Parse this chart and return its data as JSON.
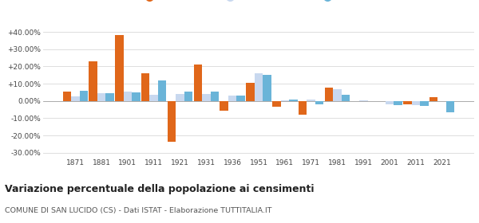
{
  "years": [
    1871,
    1881,
    1901,
    1911,
    1921,
    1931,
    1936,
    1951,
    1961,
    1971,
    1981,
    1991,
    2001,
    2011,
    2021
  ],
  "san_lucido": [
    5.5,
    23.0,
    38.0,
    16.0,
    -23.5,
    21.0,
    -5.5,
    10.5,
    -3.5,
    -8.0,
    7.5,
    0.0,
    0.0,
    -2.0,
    2.0
  ],
  "provincia_cs": [
    2.5,
    4.5,
    5.5,
    3.5,
    4.0,
    4.0,
    3.0,
    16.0,
    0.5,
    1.0,
    7.0,
    0.5,
    -2.0,
    -2.5,
    0.0
  ],
  "calabria": [
    6.0,
    4.5,
    5.0,
    12.0,
    5.5,
    5.5,
    3.0,
    15.0,
    1.0,
    -2.0,
    3.5,
    0.0,
    -2.5,
    -3.0,
    -6.5
  ],
  "color_san_lucido": "#e0671a",
  "color_provincia": "#c8d8ef",
  "color_calabria": "#6ab4d8",
  "title": "Variazione percentuale della popolazione ai censimenti",
  "subtitle": "COMUNE DI SAN LUCIDO (CS) - Dati ISTAT - Elaborazione TUTTITALIA.IT",
  "ylim_min": -32,
  "ylim_max": 43,
  "yticks": [
    -30,
    -20,
    -10,
    0,
    10,
    20,
    30,
    40
  ],
  "ytick_labels": [
    "-30.00%",
    "-20.00%",
    "-10.00%",
    "0.00%",
    "+10.00%",
    "+20.00%",
    "+30.00%",
    "+40.00%"
  ],
  "background_color": "#ffffff",
  "grid_color": "#d8d8d8"
}
